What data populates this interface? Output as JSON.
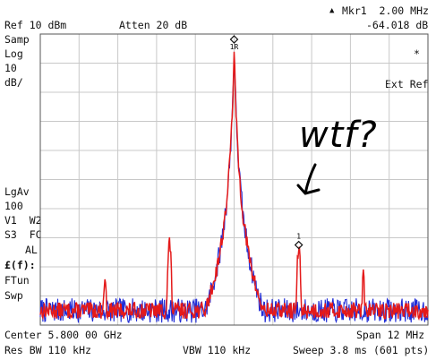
{
  "header": {
    "ref_level": "Ref 10 dBm",
    "attenuation": "Atten 20 dB",
    "marker_label": "Mkr1  2.00 MHz",
    "marker_value": "-64.018 dB"
  },
  "left_panel": {
    "samp": "Samp",
    "log": "Log",
    "scale_value": "10",
    "scale_unit": "dB/",
    "lgav": "LgAv",
    "lgav_count": "100",
    "v1w2": "V1  W2",
    "s3fc": "S3  FC",
    "al": "AL",
    "ef": "£(f):",
    "ftun": "FTun",
    "swp": "Swp"
  },
  "right_panel": {
    "asterisk": "*",
    "ext_ref": "Ext Ref"
  },
  "footer": {
    "center": "Center 5.800 00 GHz",
    "span": "Span 12 MHz",
    "res_bw": "Res BW 110 kHz",
    "vbw": "VBW 110 kHz",
    "sweep": "Sweep 3.8 ms (601 pts)"
  },
  "markers": {
    "reference_label": "1R",
    "marker_label": "1"
  },
  "annotation": {
    "text": "wtf?"
  },
  "colors": {
    "trace_red": "#e41a1a",
    "trace_blue": "#1f2bd6",
    "grid": "#c8c8c8",
    "frame": "#555555"
  },
  "chart_data": {
    "type": "line",
    "title": "",
    "x_axis": {
      "center_ghz": 5.8,
      "span_mhz": 12,
      "range_mhz_offset": [
        -6,
        6
      ],
      "divisions": 10
    },
    "y_axis": {
      "ref_level_dbm": 10,
      "scale_db_per_div": 10,
      "range_dbm": [
        -90,
        10
      ],
      "divisions": 10
    },
    "grid": true,
    "series": [
      {
        "name": "W2",
        "color": "#e41a1a",
        "baseline_dbm": -85,
        "peaks": [
          {
            "offset_mhz": 0.0,
            "level_dbm": 2.5,
            "width_mhz": 0.25
          },
          {
            "offset_mhz": -2.0,
            "level_dbm": -62,
            "width_mhz": 0.1
          },
          {
            "offset_mhz": 2.0,
            "level_dbm": -64,
            "width_mhz": 0.1
          },
          {
            "offset_mhz": -4.0,
            "level_dbm": -73.5,
            "width_mhz": 0.08
          },
          {
            "offset_mhz": 4.0,
            "level_dbm": -73.5,
            "width_mhz": 0.08
          }
        ]
      },
      {
        "name": "V1",
        "color": "#1f2bd6",
        "baseline_dbm": -85,
        "peaks": [
          {
            "offset_mhz": 0.0,
            "level_dbm": 2.5,
            "width_mhz": 0.25
          }
        ]
      }
    ],
    "marker": {
      "id": "1",
      "offset_mhz": 2.0,
      "level_dbm": -64.018
    },
    "reference_marker": {
      "id": "1R",
      "offset_mhz": 0.0,
      "level_dbm": 3
    }
  }
}
